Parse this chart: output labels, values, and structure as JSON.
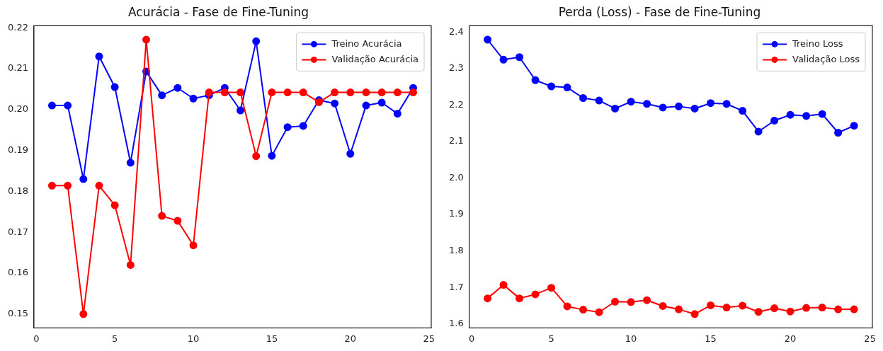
{
  "chart_data": [
    {
      "type": "line",
      "title": "Acurácia - Fase de Fine-Tuning",
      "x": [
        1,
        2,
        3,
        4,
        5,
        6,
        7,
        8,
        9,
        10,
        11,
        12,
        13,
        14,
        15,
        16,
        17,
        18,
        19,
        20,
        21,
        22,
        23,
        24
      ],
      "series": [
        {
          "name": "Treino Acurácia",
          "color": "#0000ff",
          "values": [
            0.201,
            0.201,
            0.183,
            0.213,
            0.2055,
            0.187,
            0.2093,
            0.2035,
            0.2053,
            0.2027,
            0.2035,
            0.2053,
            0.1998,
            0.2167,
            0.1887,
            0.1957,
            0.196,
            0.2023,
            0.2015,
            0.1892,
            0.201,
            0.2017,
            0.199,
            0.2053
          ]
        },
        {
          "name": "Validação Acurácia",
          "color": "#ff0000",
          "values": [
            0.1814,
            0.1814,
            0.15,
            0.1814,
            0.1766,
            0.162,
            0.2171,
            0.174,
            0.1728,
            0.1668,
            0.2042,
            0.2042,
            0.2042,
            0.1886,
            0.2042,
            0.2042,
            0.2042,
            0.2018,
            0.2042,
            0.2042,
            0.2042,
            0.2042,
            0.2042,
            0.2042
          ]
        }
      ],
      "xlim": [
        -0.15,
        25.15
      ],
      "xticks": [
        0,
        5,
        10,
        15,
        20,
        25
      ],
      "ylim": [
        0.1466,
        0.2205
      ],
      "yticks": [
        {
          "value": 0.15,
          "label": "0.15"
        },
        {
          "value": 0.16,
          "label": "0.16"
        },
        {
          "value": 0.17,
          "label": "0.17"
        },
        {
          "value": 0.18,
          "label": "0.18"
        },
        {
          "value": 0.19,
          "label": "0.19"
        },
        {
          "value": 0.2,
          "label": "0.20"
        },
        {
          "value": 0.21,
          "label": "0.21"
        },
        {
          "value": 0.22,
          "label": "0.22"
        }
      ],
      "legend": "top right",
      "marker": "circle",
      "line_style": "solid",
      "grid": false
    },
    {
      "type": "line",
      "title": "Perda (Loss) - Fase de Fine-Tuning",
      "x": [
        1,
        2,
        3,
        4,
        5,
        6,
        7,
        8,
        9,
        10,
        11,
        12,
        13,
        14,
        15,
        16,
        17,
        18,
        19,
        20,
        21,
        22,
        23,
        24
      ],
      "series": [
        {
          "name": "Treino Loss",
          "color": "#0000ff",
          "values": [
            2.379,
            2.324,
            2.331,
            2.268,
            2.251,
            2.248,
            2.219,
            2.212,
            2.19,
            2.209,
            2.203,
            2.193,
            2.196,
            2.19,
            2.205,
            2.203,
            2.184,
            2.127,
            2.157,
            2.173,
            2.17,
            2.175,
            2.124,
            2.143
          ]
        },
        {
          "name": "Validação Loss",
          "color": "#ff0000",
          "values": [
            1.67,
            1.707,
            1.67,
            1.681,
            1.699,
            1.648,
            1.639,
            1.632,
            1.661,
            1.66,
            1.665,
            1.649,
            1.64,
            1.627,
            1.651,
            1.645,
            1.65,
            1.633,
            1.643,
            1.634,
            1.644,
            1.645,
            1.64,
            1.64
          ]
        }
      ],
      "xlim": [
        -0.15,
        25.15
      ],
      "xticks": [
        0,
        5,
        10,
        15,
        20,
        25
      ],
      "ylim": [
        1.589,
        2.417
      ],
      "yticks": [
        {
          "value": 1.6,
          "label": "1.6"
        },
        {
          "value": 1.7,
          "label": "1.7"
        },
        {
          "value": 1.8,
          "label": "1.8"
        },
        {
          "value": 1.9,
          "label": "1.9"
        },
        {
          "value": 2.0,
          "label": "2.0"
        },
        {
          "value": 2.1,
          "label": "2.1"
        },
        {
          "value": 2.2,
          "label": "2.2"
        },
        {
          "value": 2.3,
          "label": "2.3"
        },
        {
          "value": 2.4,
          "label": "2.4"
        }
      ],
      "legend": "top right",
      "marker": "circle",
      "line_style": "solid",
      "grid": false
    }
  ]
}
